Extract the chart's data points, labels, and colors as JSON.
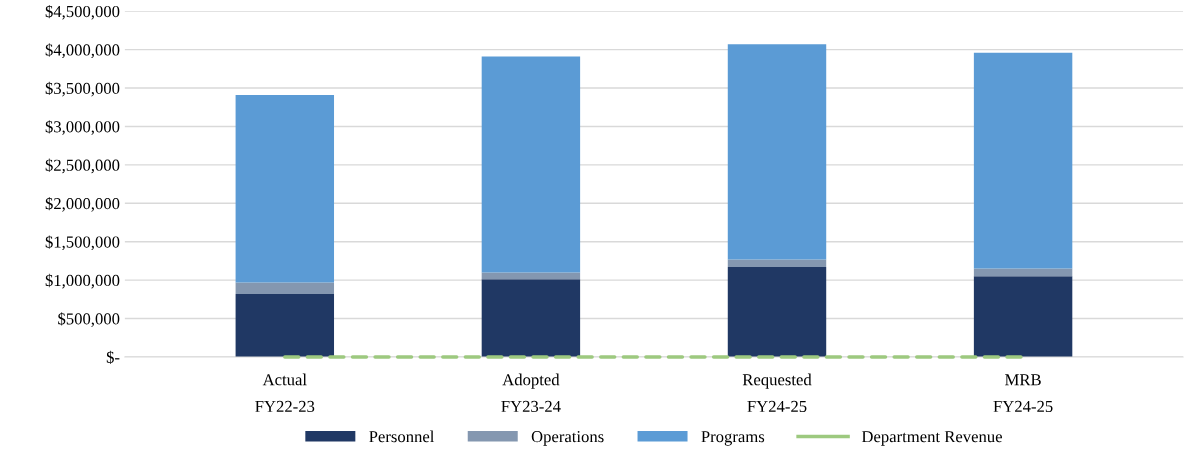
{
  "chart_data": {
    "type": "bar",
    "stacked": true,
    "categories": [
      "Actual\nFY22-23",
      "Adopted\nFY23-24",
      "Requested\nFY24-25",
      "MRB\nFY24-25"
    ],
    "series": [
      {
        "name": "Personnel",
        "color": "#203864",
        "values": [
          820000,
          1010000,
          1170000,
          1050000
        ]
      },
      {
        "name": "Operations",
        "color": "#8497b0",
        "values": [
          150000,
          90000,
          100000,
          100000
        ]
      },
      {
        "name": "Programs",
        "color": "#5b9bd5",
        "values": [
          2440000,
          2810000,
          2800000,
          2810000
        ]
      },
      {
        "name": "Department Revenue",
        "type": "line",
        "color": "#9dc97f",
        "line_style": "dashed",
        "values": [
          0,
          0,
          0,
          0
        ]
      }
    ],
    "ylim": [
      0,
      4500000
    ],
    "yticks": [
      {
        "value": 0,
        "label": "$-"
      },
      {
        "value": 500000,
        "label": "$500,000"
      },
      {
        "value": 1000000,
        "label": "$1,000,000"
      },
      {
        "value": 1500000,
        "label": "$1,500,000"
      },
      {
        "value": 2000000,
        "label": "$2,000,000"
      },
      {
        "value": 2500000,
        "label": "$2,500,000"
      },
      {
        "value": 3000000,
        "label": "$3,000,000"
      },
      {
        "value": 3500000,
        "label": "$3,500,000"
      },
      {
        "value": 4000000,
        "label": "$4,000,000"
      },
      {
        "value": 4500000,
        "label": "$4,500,000"
      }
    ],
    "grid": "y",
    "legend": "bottom"
  }
}
